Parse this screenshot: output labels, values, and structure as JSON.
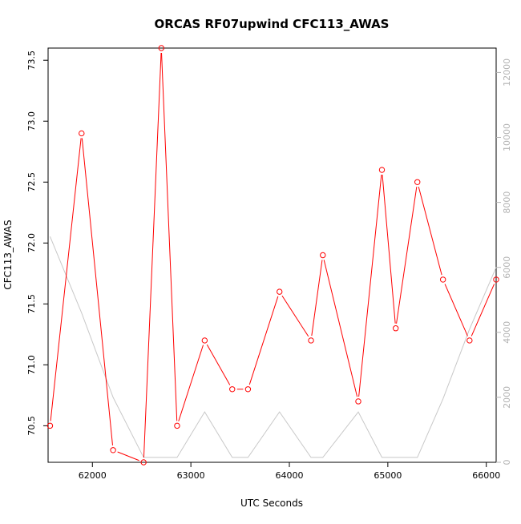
{
  "chart_data": {
    "type": "line",
    "title": "ORCAS RF07upwind CFC113_AWAS",
    "xlabel": "UTC Seconds",
    "ylabel": "CFC113_AWAS",
    "xlim": [
      61550,
      66100
    ],
    "ylim": [
      70.2,
      73.6
    ],
    "y2lim": [
      0,
      12750
    ],
    "x_ticks": [
      62000,
      63000,
      64000,
      65000,
      66000
    ],
    "x_tick_labels": [
      "62000",
      "63000",
      "64000",
      "65000",
      "66000"
    ],
    "y_ticks": [
      70.5,
      71.0,
      71.5,
      72.0,
      72.5,
      73.0,
      73.5
    ],
    "y_tick_labels": [
      "70.5",
      "71.0",
      "71.5",
      "72.0",
      "72.5",
      "73.0",
      "73.5"
    ],
    "y2_ticks": [
      0,
      2000,
      4000,
      6000,
      8000,
      10000,
      12000
    ],
    "y2_tick_labels": [
      "0",
      "2000",
      "4000",
      "6000",
      "8000",
      "10000",
      "12000"
    ],
    "grid": false,
    "series": [
      {
        "axis": "left",
        "color": "#ff0000",
        "marker": "open-circle",
        "x": [
          61570,
          61890,
          62210,
          62520,
          62700,
          62860,
          63140,
          63420,
          63580,
          63900,
          64220,
          64340,
          64700,
          64940,
          65080,
          65300,
          65560,
          65830,
          66100
        ],
        "values": [
          70.5,
          72.9,
          70.3,
          70.2,
          73.6,
          70.5,
          71.2,
          70.8,
          70.8,
          71.6,
          71.2,
          71.9,
          70.7,
          72.6,
          71.3,
          72.5,
          71.7,
          71.2,
          71.7
        ]
      },
      {
        "axis": "right",
        "color": "#c8c8c8",
        "marker": "none",
        "x": [
          61570,
          61890,
          62210,
          62520,
          62700,
          62860,
          63140,
          63420,
          63580,
          63900,
          64220,
          64340,
          64700,
          64940,
          65080,
          65300,
          65560,
          65830,
          66100
        ],
        "values": [
          6950,
          4600,
          2000,
          150,
          150,
          150,
          1550,
          150,
          150,
          1550,
          150,
          150,
          1550,
          150,
          150,
          150,
          1950,
          4100,
          6000
        ]
      }
    ]
  }
}
